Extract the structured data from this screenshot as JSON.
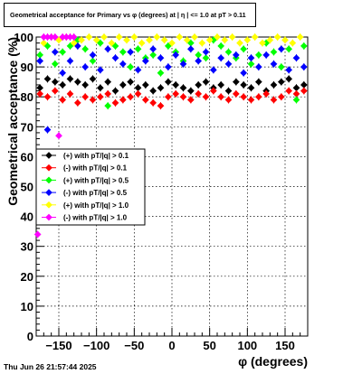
{
  "chart_data": {
    "type": "scatter",
    "title": "Geometrical acceptance for Primary vs φ (degrees) at | η | <= 1.0 at pT > 0.11",
    "xlabel": "φ (degrees)",
    "ylabel": "Geometrical acceptance (%)",
    "xlim": [
      -180,
      180
    ],
    "ylim": [
      0,
      100
    ],
    "xticks": [
      -150,
      -100,
      -50,
      0,
      50,
      100,
      150
    ],
    "yticks": [
      0,
      10,
      20,
      30,
      40,
      50,
      60,
      70,
      80,
      90,
      100
    ],
    "grid": true,
    "legend_position": "left-middle",
    "series": [
      {
        "name": "(+) with pT/|q| > 0.1",
        "color": "#000000",
        "marker": "diamond",
        "x": [
          -175,
          -165,
          -155,
          -145,
          -135,
          -125,
          -115,
          -105,
          -95,
          -85,
          -75,
          -65,
          -55,
          -45,
          -35,
          -25,
          -15,
          -5,
          5,
          15,
          25,
          35,
          45,
          55,
          65,
          75,
          85,
          95,
          105,
          115,
          125,
          135,
          145,
          155,
          165,
          175
        ],
        "y": [
          83,
          86,
          85,
          84,
          86,
          85,
          84,
          86,
          83,
          85,
          82,
          84,
          85,
          83,
          84,
          82,
          83,
          85,
          84,
          83,
          82,
          84,
          85,
          83,
          84,
          82,
          85,
          84,
          83,
          85,
          82,
          84,
          85,
          86,
          83,
          84
        ]
      },
      {
        "name": "(-) with pT/|q| > 0.1",
        "color": "#ff0000",
        "marker": "diamond",
        "x": [
          -175,
          -165,
          -155,
          -145,
          -135,
          -125,
          -115,
          -105,
          -95,
          -85,
          -75,
          -65,
          -55,
          -45,
          -35,
          -25,
          -15,
          -5,
          5,
          15,
          25,
          35,
          45,
          55,
          65,
          75,
          85,
          95,
          105,
          115,
          125,
          135,
          145,
          155,
          165,
          175
        ],
        "y": [
          81,
          80,
          82,
          79,
          81,
          78,
          80,
          79,
          80,
          81,
          78,
          79,
          80,
          81,
          79,
          78,
          77,
          80,
          81,
          80,
          79,
          81,
          80,
          82,
          80,
          79,
          81,
          80,
          79,
          80,
          81,
          79,
          80,
          82,
          81,
          82
        ]
      },
      {
        "name": "(+) with pT/|q| > 0.5",
        "color": "#00ff00",
        "marker": "diamond",
        "x": [
          -175,
          -165,
          -155,
          -145,
          -135,
          -125,
          -115,
          -105,
          -95,
          -85,
          -75,
          -65,
          -55,
          -45,
          -35,
          -25,
          -15,
          -5,
          5,
          15,
          25,
          35,
          45,
          55,
          65,
          75,
          85,
          95,
          105,
          115,
          125,
          135,
          145,
          155,
          165,
          175
        ],
        "y": [
          94,
          97,
          91,
          95,
          97,
          99,
          96,
          92,
          98,
          77,
          97,
          95,
          90,
          96,
          93,
          94,
          88,
          97,
          95,
          92,
          98,
          94,
          93,
          99,
          97,
          95,
          93,
          96,
          91,
          94,
          98,
          95,
          90,
          96,
          79,
          97
        ]
      },
      {
        "name": "(-) with pT/|q| > 0.5",
        "color": "#0000ff",
        "marker": "diamond",
        "x": [
          -175,
          -165,
          -155,
          -145,
          -135,
          -125,
          -115,
          -105,
          -95,
          -85,
          -75,
          -65,
          -55,
          -45,
          -35,
          -25,
          -15,
          -5,
          5,
          15,
          25,
          35,
          45,
          55,
          65,
          75,
          85,
          95,
          105,
          115,
          125,
          135,
          145,
          155,
          165,
          175
        ],
        "y": [
          92,
          69,
          95,
          88,
          92,
          97,
          90,
          94,
          89,
          96,
          93,
          91,
          95,
          89,
          92,
          96,
          93,
          90,
          94,
          91,
          96,
          92,
          95,
          89,
          93,
          91,
          94,
          88,
          93,
          90,
          94,
          91,
          96,
          89,
          93,
          90
        ]
      },
      {
        "name": "(+) with pT/|q| > 1.0",
        "color": "#ffff00",
        "marker": "diamond",
        "x": [
          -170,
          -160,
          -150,
          -140,
          -130,
          -120,
          -110,
          -100,
          -90,
          -80,
          -70,
          -60,
          -50,
          -40,
          -30,
          -20,
          -10,
          0,
          10,
          20,
          30,
          40,
          50,
          60,
          70,
          80,
          90,
          100,
          110,
          120,
          130,
          140,
          150,
          160,
          170
        ],
        "y": [
          98,
          100,
          99,
          100,
          98,
          99,
          100,
          99,
          100,
          98,
          100,
          99,
          100,
          98,
          99,
          100,
          99,
          98,
          100,
          99,
          100,
          98,
          99,
          100,
          99,
          100,
          98,
          99,
          100,
          98,
          99,
          100,
          99,
          98,
          100
        ]
      },
      {
        "name": "(-) with pT/|q| > 1.0",
        "color": "#ff00ff",
        "marker": "diamond",
        "x": [
          -178,
          -170,
          -165,
          -160,
          -155,
          -150,
          -145,
          -140,
          -135,
          -130
        ],
        "y": [
          34,
          100,
          100,
          100,
          100,
          67,
          100,
          100,
          100,
          100
        ]
      }
    ]
  },
  "footer_text": "Thu Jun 26 21:57:44 2025"
}
